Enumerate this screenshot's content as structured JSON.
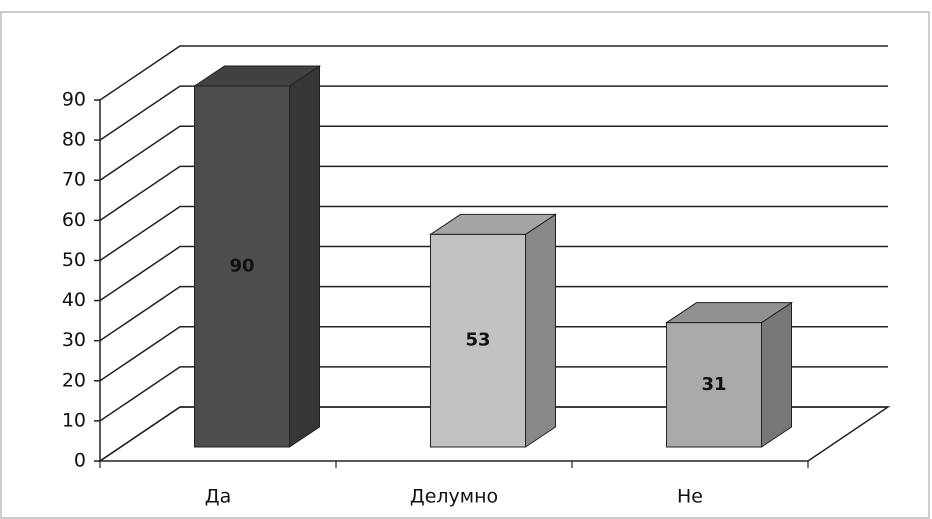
{
  "chart_data": {
    "type": "bar3d",
    "categories": [
      "Да",
      "Делумно",
      "Не"
    ],
    "values": [
      90,
      53,
      31
    ],
    "colors": [
      "#4d4d4d",
      "#c2c2c2",
      "#aaaaaa"
    ],
    "ylim": [
      0,
      90
    ],
    "yticks": [
      0,
      10,
      20,
      30,
      40,
      50,
      60,
      70,
      80,
      90
    ],
    "grid": true
  }
}
